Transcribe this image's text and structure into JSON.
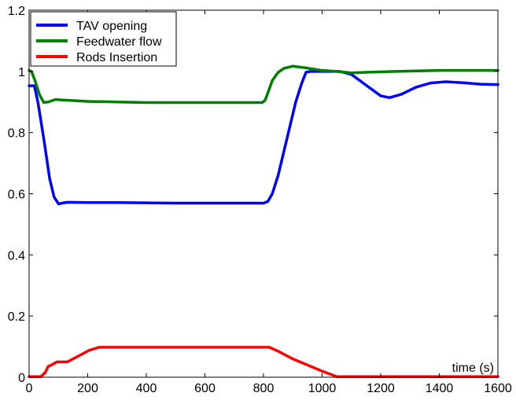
{
  "chart_data": {
    "type": "line",
    "title": "",
    "xlabel": "time (s)",
    "ylabel": "",
    "xlim": [
      0,
      1600
    ],
    "ylim": [
      0,
      1.2
    ],
    "x_ticks": [
      0,
      200,
      400,
      600,
      800,
      1000,
      1200,
      1400,
      1600
    ],
    "y_ticks": [
      0,
      0.2,
      0.4,
      0.6,
      0.8,
      1,
      1.2
    ],
    "x_tick_labels": [
      "0",
      "200",
      "400",
      "600",
      "800",
      "1000",
      "1200",
      "1400",
      "1600"
    ],
    "y_tick_labels": [
      "0",
      "0.2",
      "0.4",
      "0.6",
      "0.8",
      "1",
      "1.2"
    ],
    "grid": false,
    "legend_position": "top-left",
    "series": [
      {
        "name": "TAV opening",
        "color": "#0000ff",
        "points": [
          [
            0,
            0.953
          ],
          [
            18,
            0.953
          ],
          [
            30,
            0.9
          ],
          [
            50,
            0.78
          ],
          [
            70,
            0.65
          ],
          [
            85,
            0.59
          ],
          [
            100,
            0.567
          ],
          [
            130,
            0.572
          ],
          [
            200,
            0.571
          ],
          [
            300,
            0.571
          ],
          [
            400,
            0.57
          ],
          [
            500,
            0.569
          ],
          [
            600,
            0.569
          ],
          [
            700,
            0.569
          ],
          [
            800,
            0.569
          ],
          [
            815,
            0.575
          ],
          [
            830,
            0.6
          ],
          [
            850,
            0.66
          ],
          [
            870,
            0.74
          ],
          [
            890,
            0.82
          ],
          [
            910,
            0.9
          ],
          [
            930,
            0.96
          ],
          [
            945,
            0.997
          ],
          [
            960,
            1.0
          ],
          [
            1000,
            1.0
          ],
          [
            1060,
            1.0
          ],
          [
            1100,
            0.99
          ],
          [
            1150,
            0.955
          ],
          [
            1200,
            0.92
          ],
          [
            1230,
            0.914
          ],
          [
            1270,
            0.925
          ],
          [
            1320,
            0.948
          ],
          [
            1370,
            0.962
          ],
          [
            1420,
            0.966
          ],
          [
            1480,
            0.963
          ],
          [
            1540,
            0.958
          ],
          [
            1600,
            0.957
          ]
        ]
      },
      {
        "name": "Feedwater flow",
        "color": "#008000",
        "points": [
          [
            0,
            1.003
          ],
          [
            8,
            1.0
          ],
          [
            20,
            0.97
          ],
          [
            35,
            0.925
          ],
          [
            50,
            0.898
          ],
          [
            65,
            0.9
          ],
          [
            90,
            0.908
          ],
          [
            120,
            0.906
          ],
          [
            200,
            0.902
          ],
          [
            300,
            0.9
          ],
          [
            400,
            0.898
          ],
          [
            500,
            0.898
          ],
          [
            600,
            0.898
          ],
          [
            700,
            0.898
          ],
          [
            795,
            0.898
          ],
          [
            805,
            0.905
          ],
          [
            815,
            0.93
          ],
          [
            830,
            0.97
          ],
          [
            850,
            0.997
          ],
          [
            870,
            1.01
          ],
          [
            900,
            1.017
          ],
          [
            940,
            1.012
          ],
          [
            1000,
            1.003
          ],
          [
            1050,
            1.0
          ],
          [
            1100,
            0.995
          ],
          [
            1150,
            0.997
          ],
          [
            1250,
            1.0
          ],
          [
            1400,
            1.003
          ],
          [
            1600,
            1.003
          ]
        ]
      },
      {
        "name": "Rods Insertion",
        "color": "#ff0000",
        "points": [
          [
            0,
            0.002
          ],
          [
            40,
            0.002
          ],
          [
            55,
            0.015
          ],
          [
            65,
            0.035
          ],
          [
            80,
            0.042
          ],
          [
            95,
            0.05
          ],
          [
            130,
            0.05
          ],
          [
            170,
            0.07
          ],
          [
            205,
            0.088
          ],
          [
            240,
            0.098
          ],
          [
            300,
            0.098
          ],
          [
            500,
            0.098
          ],
          [
            700,
            0.098
          ],
          [
            820,
            0.098
          ],
          [
            850,
            0.085
          ],
          [
            900,
            0.06
          ],
          [
            950,
            0.04
          ],
          [
            1000,
            0.02
          ],
          [
            1050,
            0.002
          ],
          [
            1200,
            0.002
          ],
          [
            1400,
            0.002
          ],
          [
            1600,
            0.002
          ]
        ]
      }
    ]
  }
}
